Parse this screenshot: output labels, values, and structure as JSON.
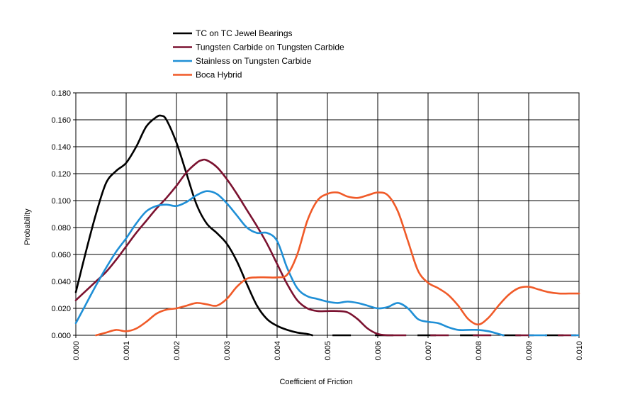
{
  "chart_data": {
    "type": "line",
    "xlabel": "Coefficient of Friction",
    "ylabel": "Probability",
    "xlim": [
      0,
      0.01
    ],
    "ylim": [
      0,
      0.18
    ],
    "x_ticks": [
      "0.000",
      "0.001",
      "0.002",
      "0.003",
      "0.004",
      "0.005",
      "0.006",
      "0.007",
      "0.008",
      "0.009",
      "0.010"
    ],
    "y_ticks": [
      "0.000",
      "0.020",
      "0.040",
      "0.060",
      "0.080",
      "0.100",
      "0.120",
      "0.140",
      "0.160",
      "0.180"
    ],
    "grid": true,
    "legend_position": "top-left",
    "series": [
      {
        "name": "TC on TC Jewel Bearings",
        "color": "#000000",
        "x": [
          0.0,
          0.0002,
          0.0004,
          0.0006,
          0.0008,
          0.001,
          0.0012,
          0.0014,
          0.0016,
          0.0017,
          0.0018,
          0.002,
          0.0022,
          0.0024,
          0.0026,
          0.0028,
          0.003,
          0.0032,
          0.0034,
          0.0036,
          0.0038,
          0.004,
          0.0042,
          0.0044,
          0.0046,
          0.0047
        ],
        "y": [
          0.032,
          0.062,
          0.09,
          0.113,
          0.122,
          0.128,
          0.14,
          0.155,
          0.162,
          0.163,
          0.16,
          0.143,
          0.12,
          0.097,
          0.083,
          0.076,
          0.068,
          0.055,
          0.038,
          0.022,
          0.012,
          0.007,
          0.004,
          0.002,
          0.001,
          0.0
        ],
        "dashed_zero_from": 0.0051
      },
      {
        "name": "Tungsten Carbide on Tungsten Carbide",
        "color": "#7b1230",
        "x": [
          0.0,
          0.0002,
          0.0004,
          0.0006,
          0.0008,
          0.001,
          0.0012,
          0.0014,
          0.0016,
          0.0018,
          0.002,
          0.0022,
          0.0024,
          0.0025,
          0.0026,
          0.0028,
          0.003,
          0.0032,
          0.0034,
          0.0036,
          0.0038,
          0.004,
          0.0042,
          0.0044,
          0.0046,
          0.0048,
          0.005,
          0.0052,
          0.0054,
          0.0056,
          0.0058,
          0.006,
          0.0062
        ],
        "y": [
          0.026,
          0.033,
          0.04,
          0.047,
          0.056,
          0.066,
          0.076,
          0.085,
          0.094,
          0.102,
          0.111,
          0.121,
          0.128,
          0.13,
          0.13,
          0.125,
          0.116,
          0.105,
          0.093,
          0.081,
          0.068,
          0.053,
          0.038,
          0.026,
          0.02,
          0.018,
          0.018,
          0.018,
          0.017,
          0.012,
          0.005,
          0.001,
          0.0
        ],
        "dashed_zero_from": 0.0062
      },
      {
        "name": "Stainless on Tungsten Carbide",
        "color": "#1f8fd6",
        "x": [
          0.0,
          0.0002,
          0.0004,
          0.0006,
          0.0008,
          0.001,
          0.0012,
          0.0014,
          0.0016,
          0.0018,
          0.002,
          0.0022,
          0.0024,
          0.0026,
          0.0028,
          0.003,
          0.0032,
          0.0034,
          0.0036,
          0.0038,
          0.004,
          0.0042,
          0.0044,
          0.0046,
          0.0048,
          0.005,
          0.0052,
          0.0054,
          0.0056,
          0.0058,
          0.006,
          0.0062,
          0.0064,
          0.0066,
          0.0068,
          0.007,
          0.0072,
          0.0074,
          0.0076,
          0.0078,
          0.008,
          0.0082,
          0.0084,
          0.0085
        ],
        "y": [
          0.009,
          0.023,
          0.037,
          0.05,
          0.062,
          0.072,
          0.083,
          0.092,
          0.096,
          0.097,
          0.096,
          0.099,
          0.104,
          0.107,
          0.105,
          0.098,
          0.089,
          0.08,
          0.076,
          0.076,
          0.07,
          0.05,
          0.035,
          0.029,
          0.027,
          0.025,
          0.024,
          0.025,
          0.024,
          0.022,
          0.02,
          0.021,
          0.024,
          0.02,
          0.012,
          0.01,
          0.009,
          0.006,
          0.004,
          0.004,
          0.004,
          0.003,
          0.001,
          0.0
        ],
        "dashed_zero_from": 0.009
      },
      {
        "name": "Boca Hybrid",
        "color": "#f05a28",
        "x": [
          0.0004,
          0.0006,
          0.0008,
          0.001,
          0.0012,
          0.0014,
          0.0016,
          0.0018,
          0.002,
          0.0022,
          0.0024,
          0.0026,
          0.0028,
          0.003,
          0.0032,
          0.0034,
          0.0036,
          0.0038,
          0.004,
          0.0042,
          0.0044,
          0.0046,
          0.0048,
          0.005,
          0.0052,
          0.0054,
          0.0056,
          0.0058,
          0.006,
          0.0062,
          0.0064,
          0.0066,
          0.0068,
          0.007,
          0.0072,
          0.0074,
          0.0076,
          0.0078,
          0.008,
          0.0082,
          0.0084,
          0.0086,
          0.0088,
          0.009,
          0.0092,
          0.0094,
          0.0096,
          0.0098,
          0.01
        ],
        "y": [
          0.0,
          0.002,
          0.004,
          0.003,
          0.005,
          0.01,
          0.016,
          0.019,
          0.02,
          0.022,
          0.024,
          0.023,
          0.022,
          0.027,
          0.036,
          0.042,
          0.043,
          0.043,
          0.043,
          0.045,
          0.06,
          0.085,
          0.1,
          0.105,
          0.106,
          0.103,
          0.102,
          0.104,
          0.106,
          0.104,
          0.092,
          0.07,
          0.048,
          0.039,
          0.035,
          0.03,
          0.022,
          0.012,
          0.008,
          0.013,
          0.022,
          0.03,
          0.035,
          0.036,
          0.034,
          0.032,
          0.031,
          0.031,
          0.031
        ],
        "dashed_zero_from": null
      }
    ]
  }
}
